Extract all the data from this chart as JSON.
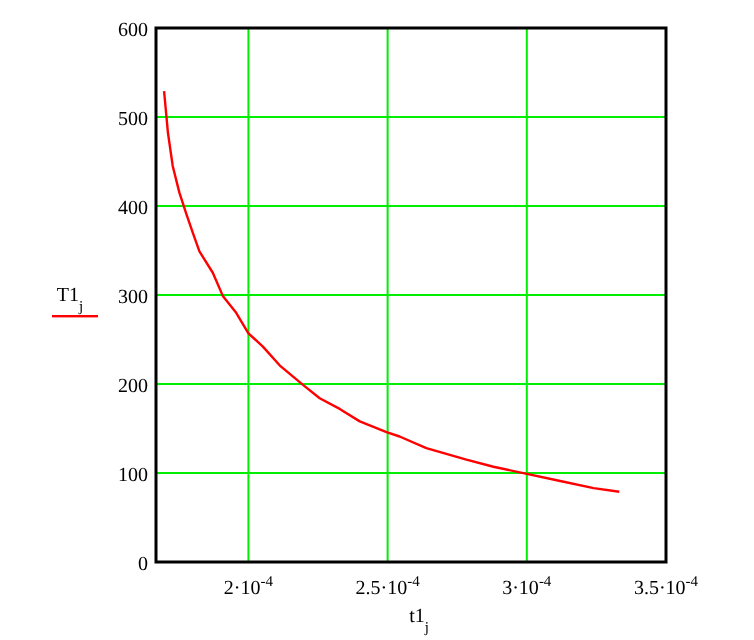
{
  "chart_data": {
    "type": "line",
    "xlabel": "t1$_{j}$",
    "ylabel": "T1$_{j}$",
    "xlim": [
      0.0001668,
      0.00035
    ],
    "ylim": [
      0,
      600
    ],
    "xticks": [
      {
        "value": 0.0002,
        "label": "2·10$^{-4}$"
      },
      {
        "value": 0.00025,
        "label": "2.5·10$^{-4}$"
      },
      {
        "value": 0.0003,
        "label": "3·10$^{-4}$"
      },
      {
        "value": 0.00035,
        "label": "3.5·10$^{-4}$"
      }
    ],
    "yticks": [
      0,
      100,
      200,
      300,
      400,
      500,
      600
    ],
    "grid": true,
    "series": [
      {
        "color": "#ff0000",
        "x": [
          0.0001697,
          0.0001711,
          0.0001728,
          0.0001752,
          0.0001776,
          0.00018,
          0.0001824,
          0.0001872,
          0.0001908,
          0.0001956,
          0.0002,
          0.0002052,
          0.0002112,
          0.0002196,
          0.0002256,
          0.0002328,
          0.00024,
          0.0002496,
          0.0002543,
          0.0002639,
          0.0002783,
          0.000288,
          0.0003,
          0.000312,
          0.000324,
          0.0003332
        ],
        "values": [
          529,
          482,
          445,
          415,
          392,
          370,
          349,
          325,
          299,
          280,
          257,
          242,
          221,
          199,
          184,
          172,
          158,
          146,
          141,
          128,
          115,
          107,
          99,
          91,
          83,
          79
        ]
      }
    ]
  }
}
